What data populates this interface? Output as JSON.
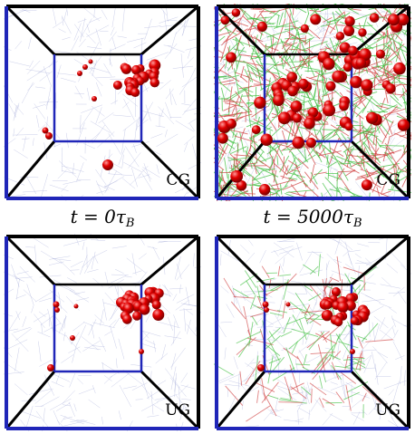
{
  "figure": {
    "panels": [
      {
        "id": "cg-t0",
        "label": "CG",
        "polymers": "none",
        "spheres": "cluster-sparse"
      },
      {
        "id": "cg-t5000",
        "label": "CG",
        "polymers": "dense",
        "spheres": "dispersed"
      },
      {
        "id": "ug-t0",
        "label": "UG",
        "polymers": "none",
        "spheres": "cluster-dense"
      },
      {
        "id": "ug-t5000",
        "label": "UG",
        "polymers": "sparse",
        "spheres": "cluster-dense"
      }
    ],
    "captions": {
      "left": {
        "prefix": "t = 0τ",
        "subscript": "B"
      },
      "right": {
        "prefix": "t = 5000τ",
        "subscript": "B"
      }
    },
    "colors": {
      "frame_blue": "#2026b8",
      "frame_black": "#000000",
      "sphere_red": "#e00000",
      "mesh": "#9fa6d6",
      "polymer_green": "#3fbf3f",
      "polymer_red": "#d04040"
    }
  }
}
